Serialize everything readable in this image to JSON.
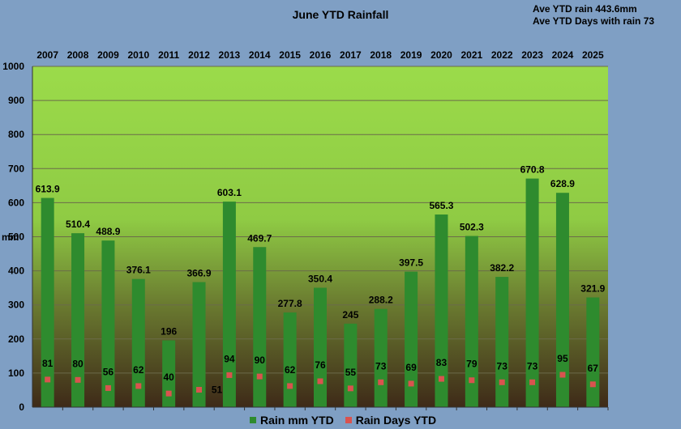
{
  "chart_data": {
    "type": "bar",
    "title": "June YTD Rainfall",
    "annotations": [
      "Ave YTD  rain 443.6mm",
      "Ave YTD  Days with rain 73"
    ],
    "ylabel": "mm",
    "ylim": [
      0,
      1000
    ],
    "yticks": [
      0,
      100,
      200,
      300,
      400,
      500,
      600,
      700,
      800,
      900,
      1000
    ],
    "categories": [
      "2007",
      "2008",
      "2009",
      "2010",
      "2011",
      "2012",
      "2013",
      "2014",
      "2015",
      "2016",
      "2017",
      "2018",
      "2019",
      "2020",
      "2021",
      "2022",
      "2023",
      "2024",
      "2025"
    ],
    "series": [
      {
        "name": "Rain mm YTD",
        "kind": "bar",
        "color": "#2e8b2e",
        "values": [
          613.9,
          510.4,
          488.9,
          376.1,
          196,
          366.9,
          603.1,
          469.7,
          277.8,
          350.4,
          245,
          288.2,
          397.5,
          565.3,
          502.3,
          382.2,
          670.8,
          628.9,
          321.9
        ]
      },
      {
        "name": "Rain Days YTD",
        "kind": "point",
        "color": "#d9534f",
        "values": [
          81,
          80,
          56,
          62,
          40,
          51,
          94,
          90,
          62,
          76,
          55,
          73,
          69,
          83,
          79,
          73,
          73,
          95,
          67
        ]
      }
    ],
    "grid": true,
    "legend": "bottom-center"
  },
  "colors": {
    "background": "#7f9fc4",
    "plot_top": "#9bdb4a",
    "plot_bottom": "#3e2a18",
    "bar": "#2e8b2e",
    "marker": "#d9534f"
  }
}
